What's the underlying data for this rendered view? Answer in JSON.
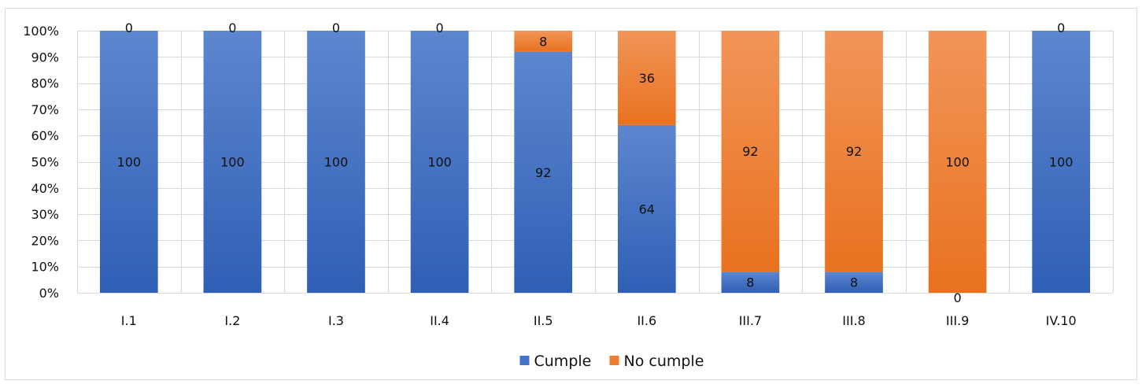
{
  "chart_data": {
    "type": "bar",
    "stacked": "percent",
    "categories": [
      "I.1",
      "I.2",
      "I.3",
      "II.4",
      "II.5",
      "II.6",
      "III.7",
      "III.8",
      "III.9",
      "IV.10"
    ],
    "series": [
      {
        "name": "Cumple",
        "values": [
          100,
          100,
          100,
          100,
          92,
          64,
          8,
          8,
          0,
          100
        ],
        "color": "#4472c4"
      },
      {
        "name": "No cumple",
        "values": [
          0,
          0,
          0,
          0,
          8,
          36,
          92,
          92,
          100,
          0
        ],
        "color": "#ed7d31"
      }
    ],
    "y_ticks": [
      "0%",
      "10%",
      "20%",
      "30%",
      "40%",
      "50%",
      "60%",
      "70%",
      "80%",
      "90%",
      "100%"
    ],
    "ylim": [
      0,
      100
    ],
    "grid": true,
    "legend_position": "bottom",
    "data_labels": true
  }
}
